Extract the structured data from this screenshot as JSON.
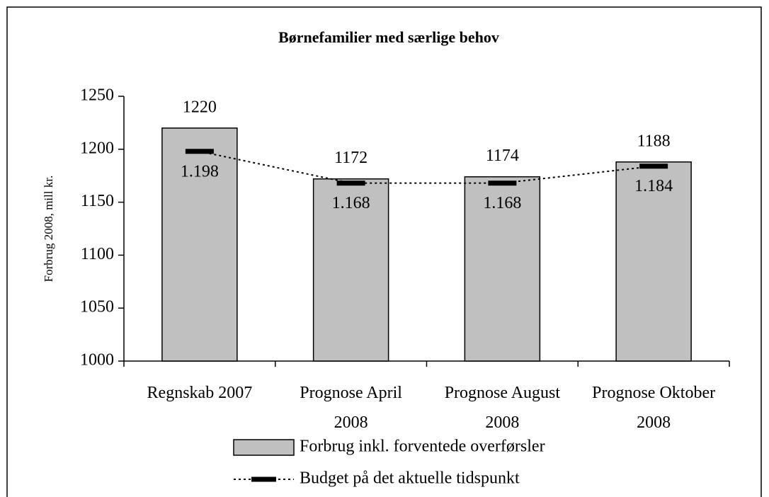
{
  "chart_data": {
    "type": "bar",
    "title": "Børnefamilier med særlige behov",
    "y_label": "Forbrug 2008, mill kr.",
    "categories": [
      "Regnskab 2007",
      "Prognose April 2008",
      "Prognose August 2008",
      "Prognose Oktober 2008"
    ],
    "series": [
      {
        "name": "Forbrug inkl. forventede overførsler",
        "type": "bar",
        "color": "#c0c0c0",
        "values": [
          1220,
          1172,
          1174,
          1188
        ]
      },
      {
        "name": "Budget på det aktuelle tidspunkt",
        "type": "line",
        "color": "#000000",
        "values": [
          1198,
          1168,
          1168,
          1184
        ],
        "value_labels": [
          "1.198",
          "1.168",
          "1.168",
          "1.184"
        ]
      }
    ],
    "ylim": [
      1000,
      1250
    ],
    "yticks": [
      1000,
      1050,
      1100,
      1150,
      1200,
      1250
    ],
    "legend": "bottom"
  }
}
